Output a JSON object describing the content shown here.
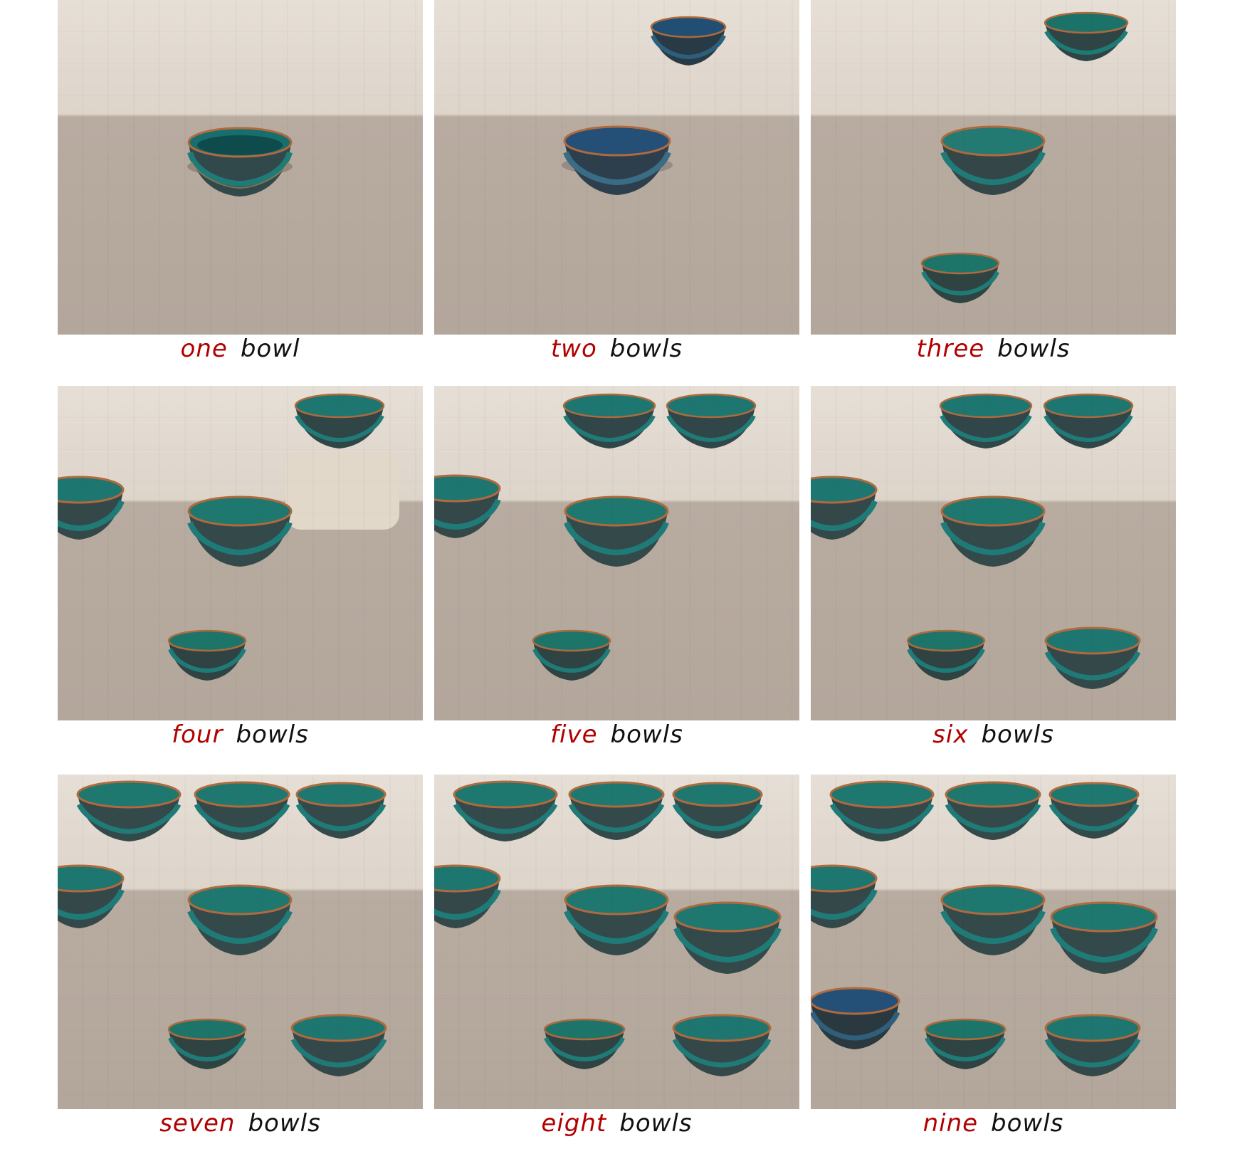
{
  "figure": {
    "captions": [
      {
        "number": "one",
        "noun": "bowl"
      },
      {
        "number": "two",
        "noun": "bowls"
      },
      {
        "number": "three",
        "noun": "bowls"
      },
      {
        "number": "four",
        "noun": "bowls"
      },
      {
        "number": "five",
        "noun": "bowls"
      },
      {
        "number": "six",
        "noun": "bowls"
      },
      {
        "number": "seven",
        "noun": "bowls"
      },
      {
        "number": "eight",
        "noun": "bowls"
      },
      {
        "number": "nine",
        "noun": "bowls"
      }
    ],
    "bowl_counts": [
      1,
      2,
      3,
      4,
      5,
      6,
      7,
      8,
      9
    ],
    "colors": {
      "number_word": "#b00000",
      "noun_word": "#111111",
      "bowl_glaze": "#167c79",
      "bowl_rim": "#b06a3e",
      "table_wood": "#b6a99d",
      "wall": "#e6dfd6"
    }
  }
}
